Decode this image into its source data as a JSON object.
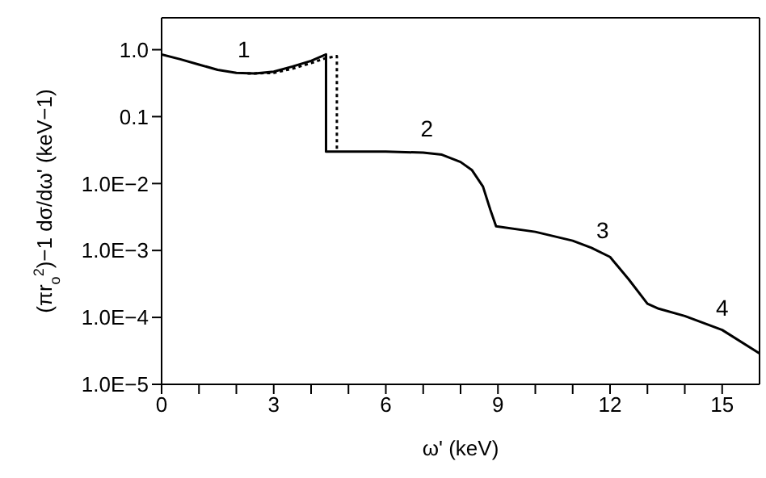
{
  "chart_data": {
    "type": "line",
    "xlabel": "ω' (keV)",
    "ylabel": "(πr$_{o}$$^{2}$)−1 dσ/dω' (keV−1)",
    "log": "y",
    "legend": false,
    "marker": "none",
    "xlim": [
      0,
      16
    ],
    "ylim": [
      1e-05,
      3
    ],
    "xticks": [
      0,
      {
        "value": 1,
        "label": null
      },
      {
        "value": 2,
        "label": null
      },
      3,
      {
        "value": 4,
        "label": null
      },
      {
        "value": 5,
        "label": null
      },
      6,
      {
        "value": 7,
        "label": null
      },
      {
        "value": 8,
        "label": null
      },
      9,
      {
        "value": 10,
        "label": null
      },
      {
        "value": 11,
        "label": null
      },
      12,
      {
        "value": 13,
        "label": null
      },
      {
        "value": 14,
        "label": null
      },
      15
    ],
    "yticks": [
      {
        "value": 1,
        "label": "1.0"
      },
      0.1,
      {
        "value": 0.01,
        "label": "1.0E−2"
      },
      {
        "value": 0.001,
        "label": "1.0E−3"
      },
      {
        "value": 0.0001,
        "label": "1.0E−4"
      },
      {
        "value": 1e-05,
        "label": "1.0E−5"
      }
    ],
    "series": [
      {
        "color": "#000000",
        "line_style": "solid",
        "x": [
          0,
          0.5,
          1,
          1.5,
          2,
          2.5,
          3,
          3.5,
          4,
          4.4,
          4.4,
          5,
          6,
          7,
          7.5,
          8,
          8.3,
          8.6,
          8.8,
          8.95,
          10,
          11,
          11.5,
          12,
          12.5,
          13,
          13.3,
          14,
          15,
          16
        ],
        "values": [
          0.85,
          0.72,
          0.6,
          0.5,
          0.45,
          0.44,
          0.47,
          0.56,
          0.68,
          0.85,
          0.03,
          0.03,
          0.03,
          0.029,
          0.027,
          0.021,
          0.016,
          0.009,
          0.004,
          0.0023,
          0.0019,
          0.0014,
          0.0011,
          0.0008,
          0.00037,
          0.00016,
          0.000135,
          0.000105,
          6.5e-05,
          2.9e-05
        ]
      },
      {
        "color": "#000000",
        "line_style": "dotted",
        "x": [
          2.3,
          3,
          3.5,
          4,
          4.4,
          4.69,
          4.69
        ],
        "values": [
          0.44,
          0.45,
          0.52,
          0.63,
          0.75,
          0.8,
          0.03
        ]
      }
    ],
    "annotations": [
      "1",
      "2",
      "3",
      "4"
    ]
  }
}
